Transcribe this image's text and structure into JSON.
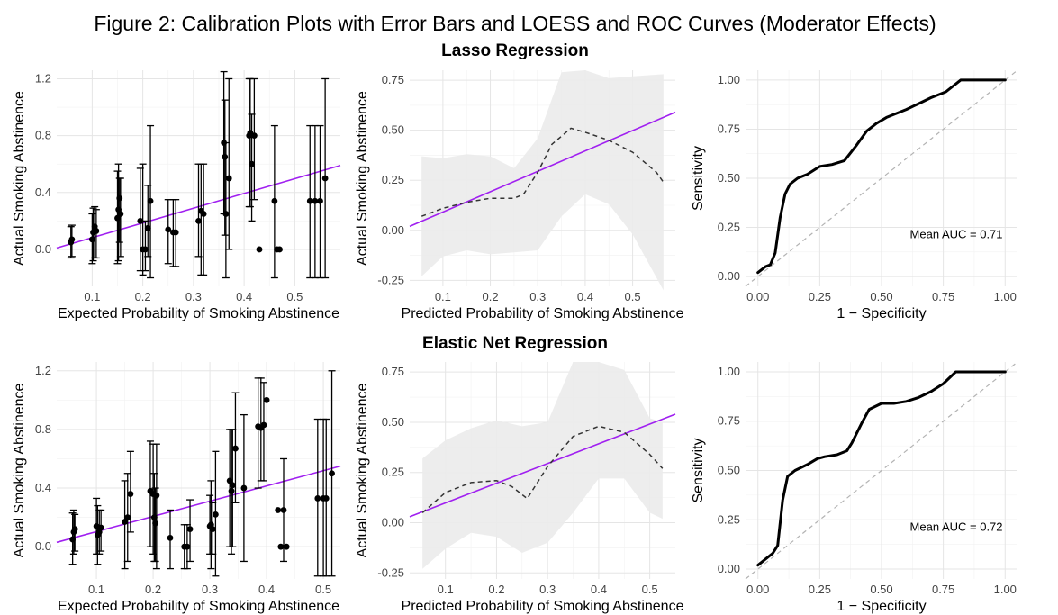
{
  "figure_title": "Figure 2: Calibration Plots with Error Bars and LOESS and ROC Curves (Moderator Effects)",
  "rows": [
    {
      "title": "Lasso Regression"
    },
    {
      "title": "Elastic Net Regression"
    }
  ],
  "colors": {
    "reference_line": "#a020f0",
    "loess": "#333333",
    "ribbon": "#ebebeb",
    "points": "#000000",
    "roc": "#000000",
    "diagonal": "#b3b3b3",
    "grid": "#e5e5e5"
  },
  "chart_data": [
    {
      "type": "scatter",
      "row": "Lasso Regression",
      "xlabel": "Expected Probability of Smoking Abstinence",
      "ylabel": "Actual Smoking Abstinence",
      "xticks": [
        "0.1",
        "0.2",
        "0.3",
        "0.4",
        "0.5"
      ],
      "yticks": [
        "0.0",
        "0.4",
        "0.8",
        "1.2"
      ],
      "xlim": [
        0.03,
        0.59
      ],
      "ylim": [
        -0.26,
        1.26
      ],
      "reference_line": {
        "x": [
          0.03,
          0.59
        ],
        "y": [
          0.01,
          0.59
        ]
      },
      "points": [
        {
          "x": 0.058,
          "y": 0.05,
          "lo": -0.06,
          "hi": 0.16
        },
        {
          "x": 0.06,
          "y": 0.07,
          "lo": -0.05,
          "hi": 0.17
        },
        {
          "x": 0.1,
          "y": 0.07,
          "lo": -0.1,
          "hi": 0.25
        },
        {
          "x": 0.102,
          "y": 0.12,
          "lo": -0.08,
          "hi": 0.29
        },
        {
          "x": 0.105,
          "y": 0.16,
          "lo": -0.06,
          "hi": 0.3
        },
        {
          "x": 0.108,
          "y": 0.13,
          "lo": -0.06,
          "hi": 0.28
        },
        {
          "x": 0.15,
          "y": 0.22,
          "lo": -0.1,
          "hi": 0.55
        },
        {
          "x": 0.152,
          "y": 0.28,
          "lo": -0.08,
          "hi": 0.6
        },
        {
          "x": 0.154,
          "y": 0.36,
          "lo": 0.05,
          "hi": 0.5
        },
        {
          "x": 0.156,
          "y": 0.25,
          "lo": -0.05,
          "hi": 0.5
        },
        {
          "x": 0.195,
          "y": 0.2,
          "lo": -0.15,
          "hi": 0.57
        },
        {
          "x": 0.2,
          "y": 0.0,
          "lo": -0.18,
          "hi": 0.6
        },
        {
          "x": 0.205,
          "y": 0.0,
          "lo": -0.15,
          "hi": 0.2
        },
        {
          "x": 0.21,
          "y": 0.15,
          "lo": -0.05,
          "hi": 0.45
        },
        {
          "x": 0.215,
          "y": 0.34,
          "lo": -0.2,
          "hi": 0.87
        },
        {
          "x": 0.25,
          "y": 0.14,
          "lo": -0.1,
          "hi": 0.35
        },
        {
          "x": 0.26,
          "y": 0.12,
          "lo": -0.12,
          "hi": 0.35
        },
        {
          "x": 0.265,
          "y": 0.12,
          "lo": -0.12,
          "hi": 0.35
        },
        {
          "x": 0.31,
          "y": 0.2,
          "lo": -0.05,
          "hi": 0.6
        },
        {
          "x": 0.315,
          "y": 0.27,
          "lo": -0.18,
          "hi": 0.6
        },
        {
          "x": 0.32,
          "y": 0.25,
          "lo": -0.18,
          "hi": 0.6
        },
        {
          "x": 0.36,
          "y": 0.75,
          "lo": 0.25,
          "hi": 1.25
        },
        {
          "x": 0.362,
          "y": 0.65,
          "lo": 0.1,
          "hi": 1.05
        },
        {
          "x": 0.364,
          "y": 0.25,
          "lo": -0.2,
          "hi": 0.75
        },
        {
          "x": 0.37,
          "y": 0.5,
          "lo": 0.0,
          "hi": 1.2
        },
        {
          "x": 0.41,
          "y": 0.8,
          "lo": 0.3,
          "hi": 1.2
        },
        {
          "x": 0.412,
          "y": 0.82,
          "lo": 0.3,
          "hi": 1.2
        },
        {
          "x": 0.415,
          "y": 0.6,
          "lo": 0.2,
          "hi": 0.95
        },
        {
          "x": 0.42,
          "y": 0.8,
          "lo": 0.35,
          "hi": 1.2
        },
        {
          "x": 0.43,
          "y": 0.0,
          "lo": 0.0,
          "hi": 0.0
        },
        {
          "x": 0.46,
          "y": 0.34,
          "lo": -0.2,
          "hi": 0.87
        },
        {
          "x": 0.465,
          "y": 0.0,
          "lo": 0.0,
          "hi": 0.0
        },
        {
          "x": 0.47,
          "y": 0.0,
          "lo": 0.0,
          "hi": 0.0
        },
        {
          "x": 0.53,
          "y": 0.34,
          "lo": -0.2,
          "hi": 0.87
        },
        {
          "x": 0.54,
          "y": 0.34,
          "lo": -0.2,
          "hi": 0.87
        },
        {
          "x": 0.55,
          "y": 0.34,
          "lo": -0.2,
          "hi": 0.87
        },
        {
          "x": 0.56,
          "y": 0.5,
          "lo": -0.2,
          "hi": 1.2
        }
      ]
    },
    {
      "type": "line",
      "row": "Lasso Regression",
      "xlabel": "Predicted Probability of Smoking Abstinence",
      "ylabel": "Actual Smoking Abstinence",
      "xticks": [
        "0.1",
        "0.2",
        "0.3",
        "0.4",
        "0.5"
      ],
      "yticks": [
        "-0.25",
        "0.00",
        "0.25",
        "0.50",
        "0.75"
      ],
      "xlim": [
        0.03,
        0.59
      ],
      "ylim": [
        -0.28,
        0.8
      ],
      "reference_line": {
        "x": [
          0.03,
          0.59
        ],
        "y": [
          0.02,
          0.59
        ]
      },
      "loess": {
        "x": [
          0.055,
          0.1,
          0.15,
          0.2,
          0.25,
          0.27,
          0.3,
          0.33,
          0.37,
          0.4,
          0.45,
          0.5,
          0.55,
          0.565
        ],
        "y": [
          0.07,
          0.11,
          0.14,
          0.16,
          0.16,
          0.18,
          0.29,
          0.43,
          0.51,
          0.49,
          0.45,
          0.39,
          0.29,
          0.24
        ]
      },
      "ribbon": {
        "x": [
          0.055,
          0.1,
          0.15,
          0.2,
          0.25,
          0.3,
          0.35,
          0.4,
          0.45,
          0.5,
          0.565
        ],
        "lo": [
          -0.23,
          -0.13,
          -0.1,
          -0.12,
          -0.11,
          -0.1,
          0.07,
          0.18,
          0.13,
          -0.02,
          -0.3
        ],
        "hi": [
          0.37,
          0.36,
          0.38,
          0.37,
          0.31,
          0.46,
          0.79,
          0.8,
          0.76,
          0.77,
          0.78
        ]
      }
    },
    {
      "type": "line",
      "row": "Lasso Regression",
      "xlabel": "1 − Specificity",
      "ylabel": "Sensitivity",
      "xticks": [
        "0.00",
        "0.25",
        "0.50",
        "0.75",
        "1.00"
      ],
      "yticks": [
        "0.00",
        "0.25",
        "0.50",
        "0.75",
        "1.00"
      ],
      "xlim": [
        -0.05,
        1.05
      ],
      "ylim": [
        -0.05,
        1.05
      ],
      "annotation": "Mean AUC = 0.71",
      "roc": {
        "x": [
          0,
          0.03,
          0.05,
          0.07,
          0.09,
          0.11,
          0.13,
          0.16,
          0.2,
          0.25,
          0.3,
          0.35,
          0.4,
          0.44,
          0.48,
          0.52,
          0.56,
          0.6,
          0.65,
          0.7,
          0.76,
          0.82,
          0.9,
          1
        ],
        "y": [
          0.02,
          0.05,
          0.06,
          0.12,
          0.3,
          0.42,
          0.47,
          0.5,
          0.52,
          0.56,
          0.57,
          0.59,
          0.67,
          0.74,
          0.78,
          0.81,
          0.83,
          0.85,
          0.88,
          0.91,
          0.94,
          1.0,
          1.0,
          1.0
        ]
      }
    },
    {
      "type": "scatter",
      "row": "Elastic Net Regression",
      "xlabel": "Expected Probability of Smoking Abstinence",
      "ylabel": "Actual Smoking Abstinence",
      "xticks": [
        "0.1",
        "0.2",
        "0.3",
        "0.4",
        "0.5"
      ],
      "yticks": [
        "0.0",
        "0.4",
        "0.8",
        "1.2"
      ],
      "xlim": [
        0.03,
        0.53
      ],
      "ylim": [
        -0.22,
        1.26
      ],
      "reference_line": {
        "x": [
          0.03,
          0.53
        ],
        "y": [
          0.03,
          0.55
        ]
      },
      "points": [
        {
          "x": 0.058,
          "y": 0.05,
          "lo": -0.12,
          "hi": 0.23
        },
        {
          "x": 0.06,
          "y": 0.1,
          "lo": -0.05,
          "hi": 0.25
        },
        {
          "x": 0.062,
          "y": 0.12,
          "lo": -0.03,
          "hi": 0.22
        },
        {
          "x": 0.1,
          "y": 0.14,
          "lo": -0.05,
          "hi": 0.33
        },
        {
          "x": 0.102,
          "y": 0.08,
          "lo": -0.12,
          "hi": 0.28
        },
        {
          "x": 0.105,
          "y": 0.1,
          "lo": -0.05,
          "hi": 0.25
        },
        {
          "x": 0.108,
          "y": 0.13,
          "lo": -0.03,
          "hi": 0.25
        },
        {
          "x": 0.15,
          "y": 0.17,
          "lo": -0.15,
          "hi": 0.45
        },
        {
          "x": 0.155,
          "y": 0.2,
          "lo": -0.1,
          "hi": 0.5
        },
        {
          "x": 0.16,
          "y": 0.36,
          "lo": 0.1,
          "hi": 0.65
        },
        {
          "x": 0.195,
          "y": 0.38,
          "lo": 0.0,
          "hi": 0.72
        },
        {
          "x": 0.2,
          "y": 0.36,
          "lo": -0.05,
          "hi": 0.7
        },
        {
          "x": 0.202,
          "y": 0.2,
          "lo": -0.1,
          "hi": 0.5
        },
        {
          "x": 0.204,
          "y": 0.16,
          "lo": -0.1,
          "hi": 0.4
        },
        {
          "x": 0.206,
          "y": 0.35,
          "lo": -0.15,
          "hi": 0.7
        },
        {
          "x": 0.23,
          "y": 0.06,
          "lo": -0.15,
          "hi": 0.25
        },
        {
          "x": 0.255,
          "y": 0.0,
          "lo": -0.15,
          "hi": 0.15
        },
        {
          "x": 0.26,
          "y": 0.0,
          "lo": -0.15,
          "hi": 0.15
        },
        {
          "x": 0.265,
          "y": 0.12,
          "lo": -0.1,
          "hi": 0.32
        },
        {
          "x": 0.3,
          "y": 0.14,
          "lo": -0.05,
          "hi": 0.35
        },
        {
          "x": 0.302,
          "y": 0.15,
          "lo": -0.15,
          "hi": 0.45
        },
        {
          "x": 0.305,
          "y": 0.12,
          "lo": -0.05,
          "hi": 0.3
        },
        {
          "x": 0.31,
          "y": 0.22,
          "lo": -0.2,
          "hi": 0.65
        },
        {
          "x": 0.335,
          "y": 0.45,
          "lo": 0.0,
          "hi": 0.8
        },
        {
          "x": 0.338,
          "y": 0.38,
          "lo": -0.05,
          "hi": 0.8
        },
        {
          "x": 0.34,
          "y": 0.42,
          "lo": 0.0,
          "hi": 0.8
        },
        {
          "x": 0.345,
          "y": 0.67,
          "lo": 0.3,
          "hi": 1.05
        },
        {
          "x": 0.36,
          "y": 0.4,
          "lo": -0.1,
          "hi": 0.9
        },
        {
          "x": 0.385,
          "y": 0.82,
          "lo": 0.4,
          "hi": 1.15
        },
        {
          "x": 0.39,
          "y": 0.81,
          "lo": 0.45,
          "hi": 1.15
        },
        {
          "x": 0.395,
          "y": 0.83,
          "lo": 0.45,
          "hi": 1.12
        },
        {
          "x": 0.4,
          "y": 1.0,
          "lo": 1.0,
          "hi": 1.0
        },
        {
          "x": 0.42,
          "y": 0.25,
          "lo": 0.25,
          "hi": 0.25
        },
        {
          "x": 0.425,
          "y": 0.0,
          "lo": 0.0,
          "hi": 0.0
        },
        {
          "x": 0.43,
          "y": 0.25,
          "lo": -0.1,
          "hi": 0.6
        },
        {
          "x": 0.435,
          "y": 0.0,
          "lo": 0.0,
          "hi": 0.0
        },
        {
          "x": 0.49,
          "y": 0.33,
          "lo": -0.2,
          "hi": 0.87
        },
        {
          "x": 0.5,
          "y": 0.33,
          "lo": -0.2,
          "hi": 0.87
        },
        {
          "x": 0.505,
          "y": 0.33,
          "lo": -0.2,
          "hi": 0.87
        },
        {
          "x": 0.515,
          "y": 0.5,
          "lo": -0.2,
          "hi": 1.2
        }
      ]
    },
    {
      "type": "line",
      "row": "Elastic Net Regression",
      "xlabel": "Predicted Probability of Smoking Abstinence",
      "ylabel": "Actual Smoking Abstinence",
      "xticks": [
        "0.1",
        "0.2",
        "0.3",
        "0.4",
        "0.5"
      ],
      "yticks": [
        "-0.25",
        "0.00",
        "0.25",
        "0.50",
        "0.75"
      ],
      "xlim": [
        0.03,
        0.55
      ],
      "ylim": [
        -0.28,
        0.8
      ],
      "reference_line": {
        "x": [
          0.03,
          0.55
        ],
        "y": [
          0.03,
          0.54
        ]
      },
      "loess": {
        "x": [
          0.055,
          0.1,
          0.15,
          0.2,
          0.23,
          0.26,
          0.3,
          0.35,
          0.4,
          0.45,
          0.5,
          0.525
        ],
        "y": [
          0.05,
          0.15,
          0.2,
          0.21,
          0.18,
          0.12,
          0.28,
          0.43,
          0.48,
          0.45,
          0.34,
          0.27
        ]
      },
      "ribbon": {
        "x": [
          0.055,
          0.1,
          0.15,
          0.2,
          0.25,
          0.3,
          0.35,
          0.4,
          0.45,
          0.5,
          0.525
        ],
        "lo": [
          -0.23,
          -0.13,
          -0.05,
          -0.07,
          -0.15,
          -0.1,
          0.05,
          0.22,
          0.22,
          0.05,
          0.02
        ],
        "hi": [
          0.32,
          0.41,
          0.47,
          0.51,
          0.48,
          0.5,
          0.8,
          0.8,
          0.76,
          0.52,
          0.5
        ]
      }
    },
    {
      "type": "line",
      "row": "Elastic Net Regression",
      "xlabel": "1 − Specificity",
      "ylabel": "Sensitivity",
      "xticks": [
        "0.00",
        "0.25",
        "0.50",
        "0.75",
        "1.00"
      ],
      "yticks": [
        "0.00",
        "0.25",
        "0.50",
        "0.75",
        "1.00"
      ],
      "xlim": [
        -0.05,
        1.05
      ],
      "ylim": [
        -0.05,
        1.05
      ],
      "annotation": "Mean AUC = 0.72",
      "roc": {
        "x": [
          0,
          0.03,
          0.06,
          0.08,
          0.1,
          0.12,
          0.15,
          0.2,
          0.24,
          0.27,
          0.32,
          0.36,
          0.38,
          0.42,
          0.45,
          0.5,
          0.55,
          0.6,
          0.65,
          0.7,
          0.75,
          0.8,
          0.85,
          1
        ],
        "y": [
          0.02,
          0.05,
          0.08,
          0.12,
          0.35,
          0.47,
          0.5,
          0.53,
          0.56,
          0.57,
          0.58,
          0.6,
          0.64,
          0.74,
          0.81,
          0.84,
          0.84,
          0.85,
          0.87,
          0.9,
          0.94,
          1.0,
          1.0,
          1.0
        ]
      }
    }
  ]
}
